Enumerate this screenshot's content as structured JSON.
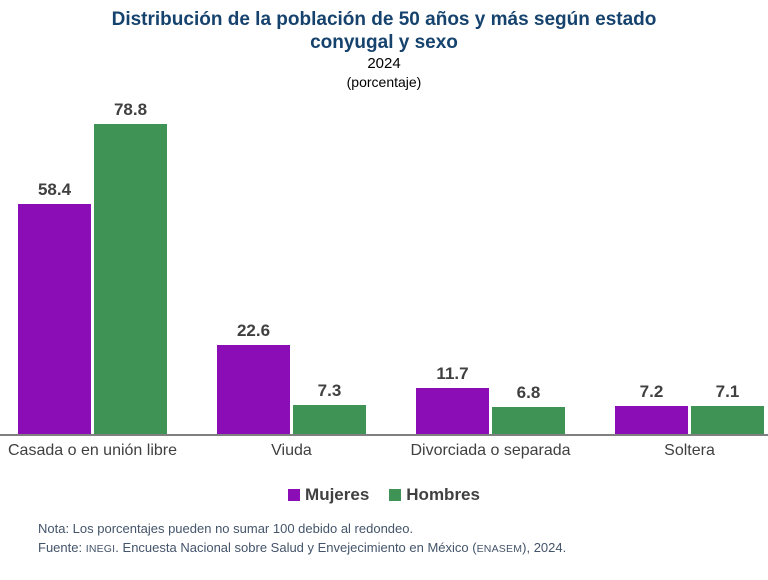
{
  "header": {
    "title": "Distribución de la población de 50 años y más según estado conyugal y sexo",
    "year": "2024",
    "unit": "(porcentaje)"
  },
  "chart_data": {
    "type": "bar",
    "title": "Distribución de la población de 50 años y más según estado conyugal y sexo",
    "subtitle": "2024",
    "unit_label": "(porcentaje)",
    "categories": [
      "Casada o en unión libre",
      "Viuda",
      "Divorciada o separada",
      "Soltera"
    ],
    "series": [
      {
        "name": "Mujeres",
        "color": "#8B0DB5",
        "values": [
          58.4,
          22.6,
          11.7,
          7.2
        ]
      },
      {
        "name": "Hombres",
        "color": "#3F9355",
        "values": [
          78.8,
          7.3,
          6.8,
          7.1
        ]
      }
    ],
    "ylim": [
      0,
      88
    ],
    "grid": false,
    "y_axis_visible": false,
    "value_labels": true,
    "legend_position": "bottom"
  },
  "legend": {
    "items": [
      {
        "label": "Mujeres",
        "color": "#8B0DB5"
      },
      {
        "label": "Hombres",
        "color": "#3F9355"
      }
    ]
  },
  "footnotes": {
    "note": "Nota: Los porcentajes pueden no sumar 100 debido al redondeo.",
    "fuente_prefix": "Fuente: ",
    "fuente_org": "INEGI",
    "fuente_mid": ". Encuesta Nacional sobre Salud y Envejecimiento en México (",
    "fuente_acronym": "ENASEM",
    "fuente_suffix": "), 2024."
  },
  "colors": {
    "title": "#16436D",
    "value_label": "#404040",
    "axis_line": "#808080",
    "footnote": "#44546A"
  }
}
